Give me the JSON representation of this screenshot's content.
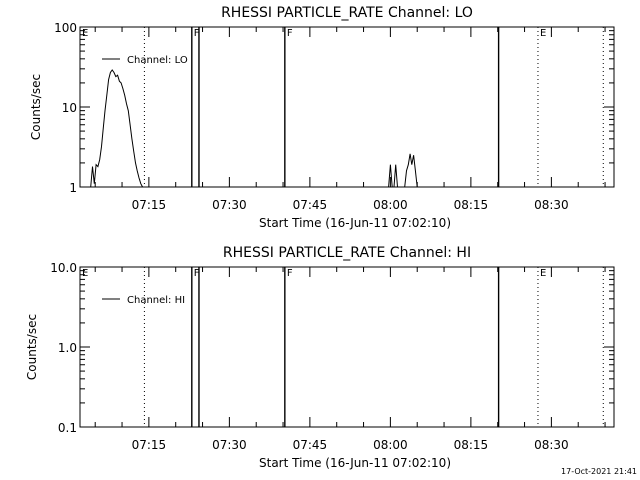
{
  "chart_data": [
    {
      "type": "line",
      "title": "RHESSI PARTICLE_RATE Channel: LO",
      "xlabel": "Start Time (16-Jun-11 07:02:10)",
      "ylabel": "Counts/sec",
      "yscale": "log",
      "ylim": [
        1,
        100
      ],
      "yticks": [
        1,
        10,
        100
      ],
      "ytick_labels": [
        "1",
        "10",
        "100"
      ],
      "xlim": [
        "07:02:10",
        "08:41:40"
      ],
      "xtick_labels": [
        "07:15",
        "07:30",
        "07:45",
        "08:00",
        "08:15",
        "08:30"
      ],
      "legend": {
        "label": "Channel: LO",
        "placement": "top-left"
      },
      "annotations": [
        {
          "text": "E",
          "time": "07:02:10",
          "style": "none"
        },
        {
          "text": "F",
          "time": "07:23:00",
          "style": "solid"
        },
        {
          "time": "07:24:20",
          "style": "solid"
        },
        {
          "text": "F",
          "time": "07:40:20",
          "style": "solid"
        },
        {
          "time": "08:20:10",
          "style": "solid"
        },
        {
          "text": "E",
          "time": "08:27:30",
          "style": "dotted"
        },
        {
          "time": "07:14:10",
          "style": "dotted"
        },
        {
          "time": "08:39:40",
          "style": "dotted"
        }
      ],
      "series": [
        {
          "name": "Channel: LO",
          "x": [
            "07:04:10",
            "07:04:30",
            "07:04:50",
            "07:05:10",
            "07:05:30",
            "07:05:50",
            "07:06:10",
            "07:06:30",
            "07:06:50",
            "07:07:10",
            "07:07:30",
            "07:07:50",
            "07:08:10",
            "07:08:30",
            "07:08:50",
            "07:09:10",
            "07:09:30",
            "07:09:50",
            "07:10:10",
            "07:10:30",
            "07:10:50",
            "07:11:10",
            "07:11:30",
            "07:11:50",
            "07:12:10",
            "07:12:30",
            "07:12:50",
            "07:13:10",
            "07:13:30",
            "07:13:50",
            "07:14:10",
            "07:14:20"
          ],
          "values": [
            1,
            1.8,
            1.1,
            1.9,
            1.8,
            2.2,
            3.2,
            5.5,
            9,
            14,
            22,
            27,
            29,
            27,
            24,
            25,
            21,
            20,
            17,
            14,
            11,
            9,
            6,
            4,
            2.8,
            2,
            1.6,
            1.3,
            1.1,
            1,
            1,
            1
          ]
        },
        {
          "name": "Channel: LO",
          "x": [
            "07:59:40",
            "08:00:00",
            "08:00:20",
            "08:00:40",
            "08:01:00",
            "08:01:20",
            "08:01:40",
            "08:02:00",
            "08:02:20",
            "08:02:40",
            "08:03:00",
            "08:03:20",
            "08:03:40",
            "08:04:00",
            "08:04:20",
            "08:04:40",
            "08:05:00"
          ],
          "values": [
            1,
            1.9,
            1,
            1,
            1.9,
            1,
            1,
            1,
            1,
            1,
            1.6,
            1.9,
            2.6,
            1.9,
            2.5,
            1.6,
            1
          ]
        }
      ]
    },
    {
      "type": "line",
      "title": "RHESSI PARTICLE_RATE Channel: HI",
      "xlabel": "Start Time (16-Jun-11 07:02:10)",
      "ylabel": "Counts/sec",
      "yscale": "log",
      "ylim": [
        0.1,
        10
      ],
      "yticks": [
        0.1,
        1,
        10
      ],
      "ytick_labels": [
        "0.1",
        "1.0",
        "10.0"
      ],
      "xlim": [
        "07:02:10",
        "08:41:40"
      ],
      "xtick_labels": [
        "07:15",
        "07:30",
        "07:45",
        "08:00",
        "08:15",
        "08:30"
      ],
      "legend": {
        "label": "Channel: HI",
        "placement": "top-left"
      },
      "annotations": [
        {
          "text": "E",
          "time": "07:02:10",
          "style": "none"
        },
        {
          "text": "F",
          "time": "07:23:00",
          "style": "solid"
        },
        {
          "time": "07:24:20",
          "style": "solid"
        },
        {
          "text": "F",
          "time": "07:40:20",
          "style": "solid"
        },
        {
          "time": "08:20:10",
          "style": "solid"
        },
        {
          "text": "E",
          "time": "08:27:30",
          "style": "dotted"
        },
        {
          "time": "07:14:10",
          "style": "dotted"
        },
        {
          "time": "08:39:40",
          "style": "dotted"
        }
      ],
      "series": []
    }
  ],
  "footer": {
    "timestamp": "17-Oct-2021 21:41"
  }
}
